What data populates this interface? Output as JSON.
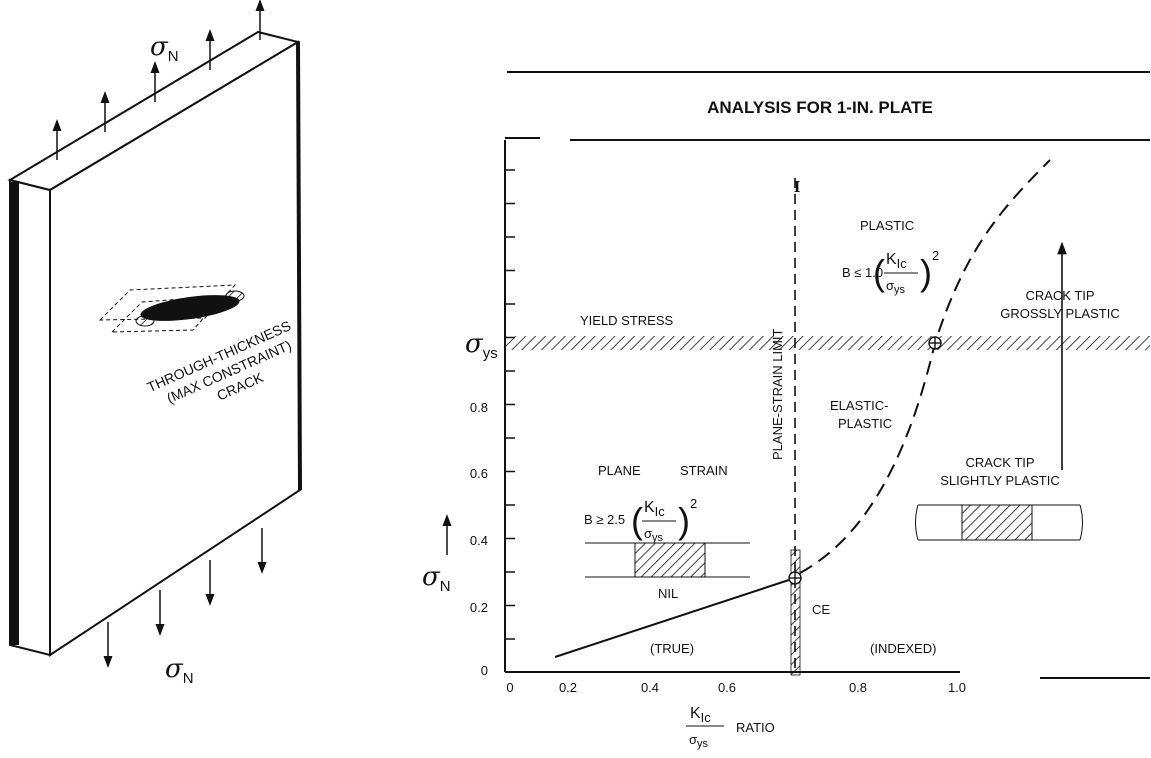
{
  "plate": {
    "stress_top": {
      "symbol": "σ",
      "subscript": "N"
    },
    "stress_bottom": {
      "symbol": "σ",
      "subscript": "N"
    },
    "crack_label": [
      "THROUGH-THICKNESS",
      "(MAX CONSTRAINT)",
      "CRACK"
    ]
  },
  "analysis": {
    "title": "ANALYSIS FOR 1-IN. PLATE",
    "limit_marker": "I",
    "plastic": {
      "label": "PLASTIC",
      "criterion": "B ≤ 1.0",
      "numerator": {
        "symbol": "K",
        "subscript": "Ic"
      },
      "denominator": {
        "symbol": "σ",
        "subscript": "ys"
      },
      "exponent": "2"
    },
    "grossly_plastic": [
      "CRACK TIP",
      "GROSSLY PLASTIC"
    ],
    "yield_stress": "YIELD STRESS",
    "yield_symbol": {
      "symbol": "σ",
      "subscript": "ys"
    },
    "plane_strain_limit": "PLANE-STRAIN LIMIT",
    "elastic_plastic": [
      "ELASTIC-",
      "PLASTIC"
    ],
    "plane_strain": {
      "label": [
        "PLANE",
        "STRAIN"
      ],
      "criterion": "B ≥ 2.5",
      "numerator": {
        "symbol": "K",
        "subscript": "Ic"
      },
      "denominator": {
        "symbol": "σ",
        "subscript": "ys"
      },
      "exponent": "2"
    },
    "nil": "NIL",
    "slightly_plastic": [
      "CRACK TIP",
      "SLIGHTLY PLASTIC"
    ],
    "ce": "CE",
    "true_label": "(TRUE)",
    "indexed_label": "(INDEXED)",
    "y_axis": {
      "symbol": "σ",
      "subscript": "N",
      "ticks": [
        "0",
        "0.2",
        "0.4",
        "0.6",
        "0.8"
      ]
    },
    "x_axis": {
      "numerator": {
        "symbol": "K",
        "subscript": "Ic"
      },
      "denominator": {
        "symbol": "σ",
        "subscript": "ys"
      },
      "label": "RATIO",
      "ticks": [
        "0",
        "0.2",
        "0.4",
        "0.6",
        "0.8",
        "1.0"
      ]
    }
  }
}
